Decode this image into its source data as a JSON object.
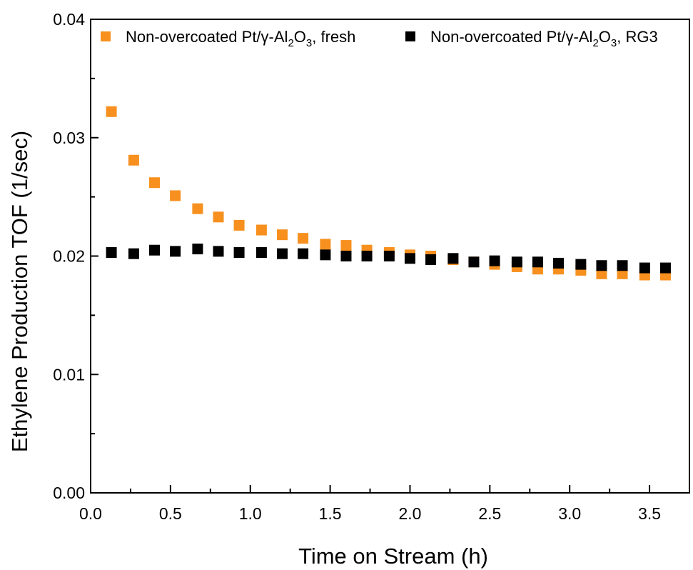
{
  "chart_data": {
    "type": "scatter",
    "title": "",
    "xlabel": "Time on Stream (h)",
    "ylabel": "Ethylene Production TOF (1/sec)",
    "xlim": [
      0.0,
      3.75
    ],
    "ylim": [
      0.0,
      0.04
    ],
    "xticks": [
      "0.0",
      "0.5",
      "1.0",
      "1.5",
      "2.0",
      "2.5",
      "3.0",
      "3.5"
    ],
    "yticks": [
      "0.00",
      "0.01",
      "0.02",
      "0.03",
      "0.04"
    ],
    "grid": false,
    "legend_position": "top",
    "series": [
      {
        "name_parts": [
          "Non-overcoated Pt/γ-Al",
          "2",
          "O",
          "3",
          ", fresh"
        ],
        "color": "#f7901e",
        "marker": "square",
        "x": [
          0.13,
          0.27,
          0.4,
          0.53,
          0.67,
          0.8,
          0.93,
          1.07,
          1.2,
          1.33,
          1.47,
          1.6,
          1.73,
          1.87,
          2.0,
          2.13,
          2.27,
          2.4,
          2.53,
          2.67,
          2.8,
          2.93,
          3.07,
          3.2,
          3.33,
          3.47,
          3.6
        ],
        "y": [
          0.0322,
          0.0281,
          0.0262,
          0.0251,
          0.024,
          0.0233,
          0.0226,
          0.0222,
          0.0218,
          0.0215,
          0.021,
          0.0209,
          0.0205,
          0.0203,
          0.0201,
          0.02,
          0.0197,
          0.0195,
          0.0193,
          0.0191,
          0.0189,
          0.0189,
          0.0188,
          0.0185,
          0.0185,
          0.0184,
          0.0184
        ]
      },
      {
        "name_parts": [
          "Non-overcoated Pt/γ-Al",
          "2",
          "O",
          "3",
          ", RG3"
        ],
        "color": "#000000",
        "marker": "square",
        "x": [
          0.13,
          0.27,
          0.4,
          0.53,
          0.67,
          0.8,
          0.93,
          1.07,
          1.2,
          1.33,
          1.47,
          1.6,
          1.73,
          1.87,
          2.0,
          2.13,
          2.27,
          2.4,
          2.53,
          2.67,
          2.8,
          2.93,
          3.07,
          3.2,
          3.33,
          3.47,
          3.6
        ],
        "y": [
          0.0203,
          0.0202,
          0.0205,
          0.0204,
          0.0206,
          0.0204,
          0.0203,
          0.0203,
          0.0202,
          0.0202,
          0.0201,
          0.02,
          0.02,
          0.02,
          0.0198,
          0.0197,
          0.0198,
          0.0195,
          0.0196,
          0.0195,
          0.0195,
          0.0194,
          0.0193,
          0.0192,
          0.0192,
          0.019,
          0.019
        ]
      }
    ]
  }
}
